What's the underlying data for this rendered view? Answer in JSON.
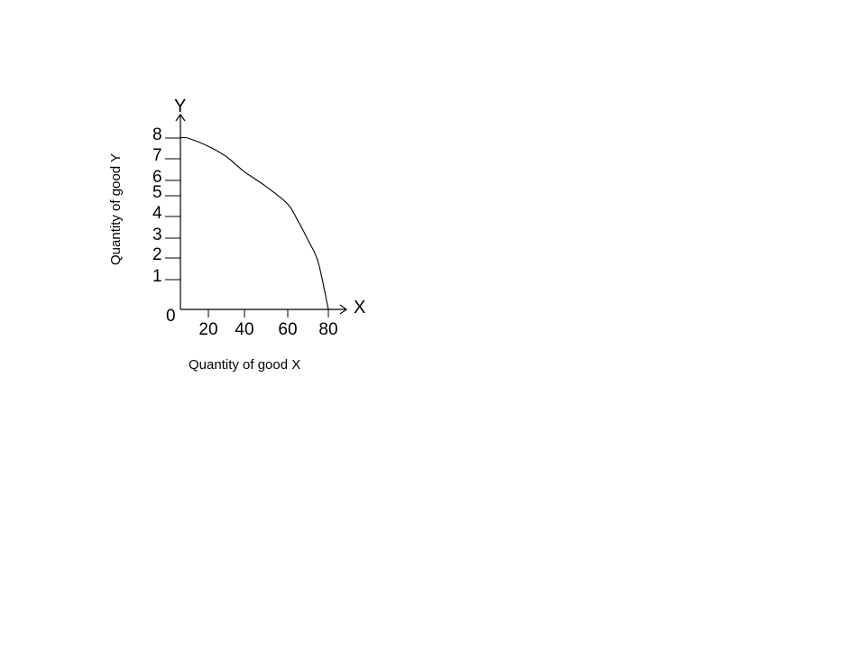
{
  "chart_data": {
    "type": "line",
    "xlabel": "Quantity of good X",
    "ylabel": "Quantity of good Y",
    "x_axis_letter": "X",
    "y_axis_letter": "Y",
    "origin_label": "0",
    "x_ticks": [
      {
        "value": 20,
        "label": "20"
      },
      {
        "value": 40,
        "label": "40"
      },
      {
        "value": 60,
        "label": "60"
      },
      {
        "value": 80,
        "label": "80"
      }
    ],
    "y_ticks": [
      {
        "value": 1,
        "label": "1"
      },
      {
        "value": 2,
        "label": "2"
      },
      {
        "value": 3,
        "label": "3"
      },
      {
        "value": 4,
        "label": "4"
      },
      {
        "value": 5,
        "label": "5"
      },
      {
        "value": 6,
        "label": "6"
      },
      {
        "value": 7,
        "label": "7"
      },
      {
        "value": 8,
        "label": "8"
      }
    ],
    "series": [
      {
        "x": [
          0,
          5,
          20,
          30,
          40,
          50,
          60,
          65,
          70,
          75,
          80
        ],
        "y": [
          8,
          8,
          7.6,
          7.1,
          6.4,
          5.6,
          4.6,
          3.8,
          2.9,
          1.8,
          0
        ],
        "color": "#000000"
      }
    ],
    "grid": false
  }
}
